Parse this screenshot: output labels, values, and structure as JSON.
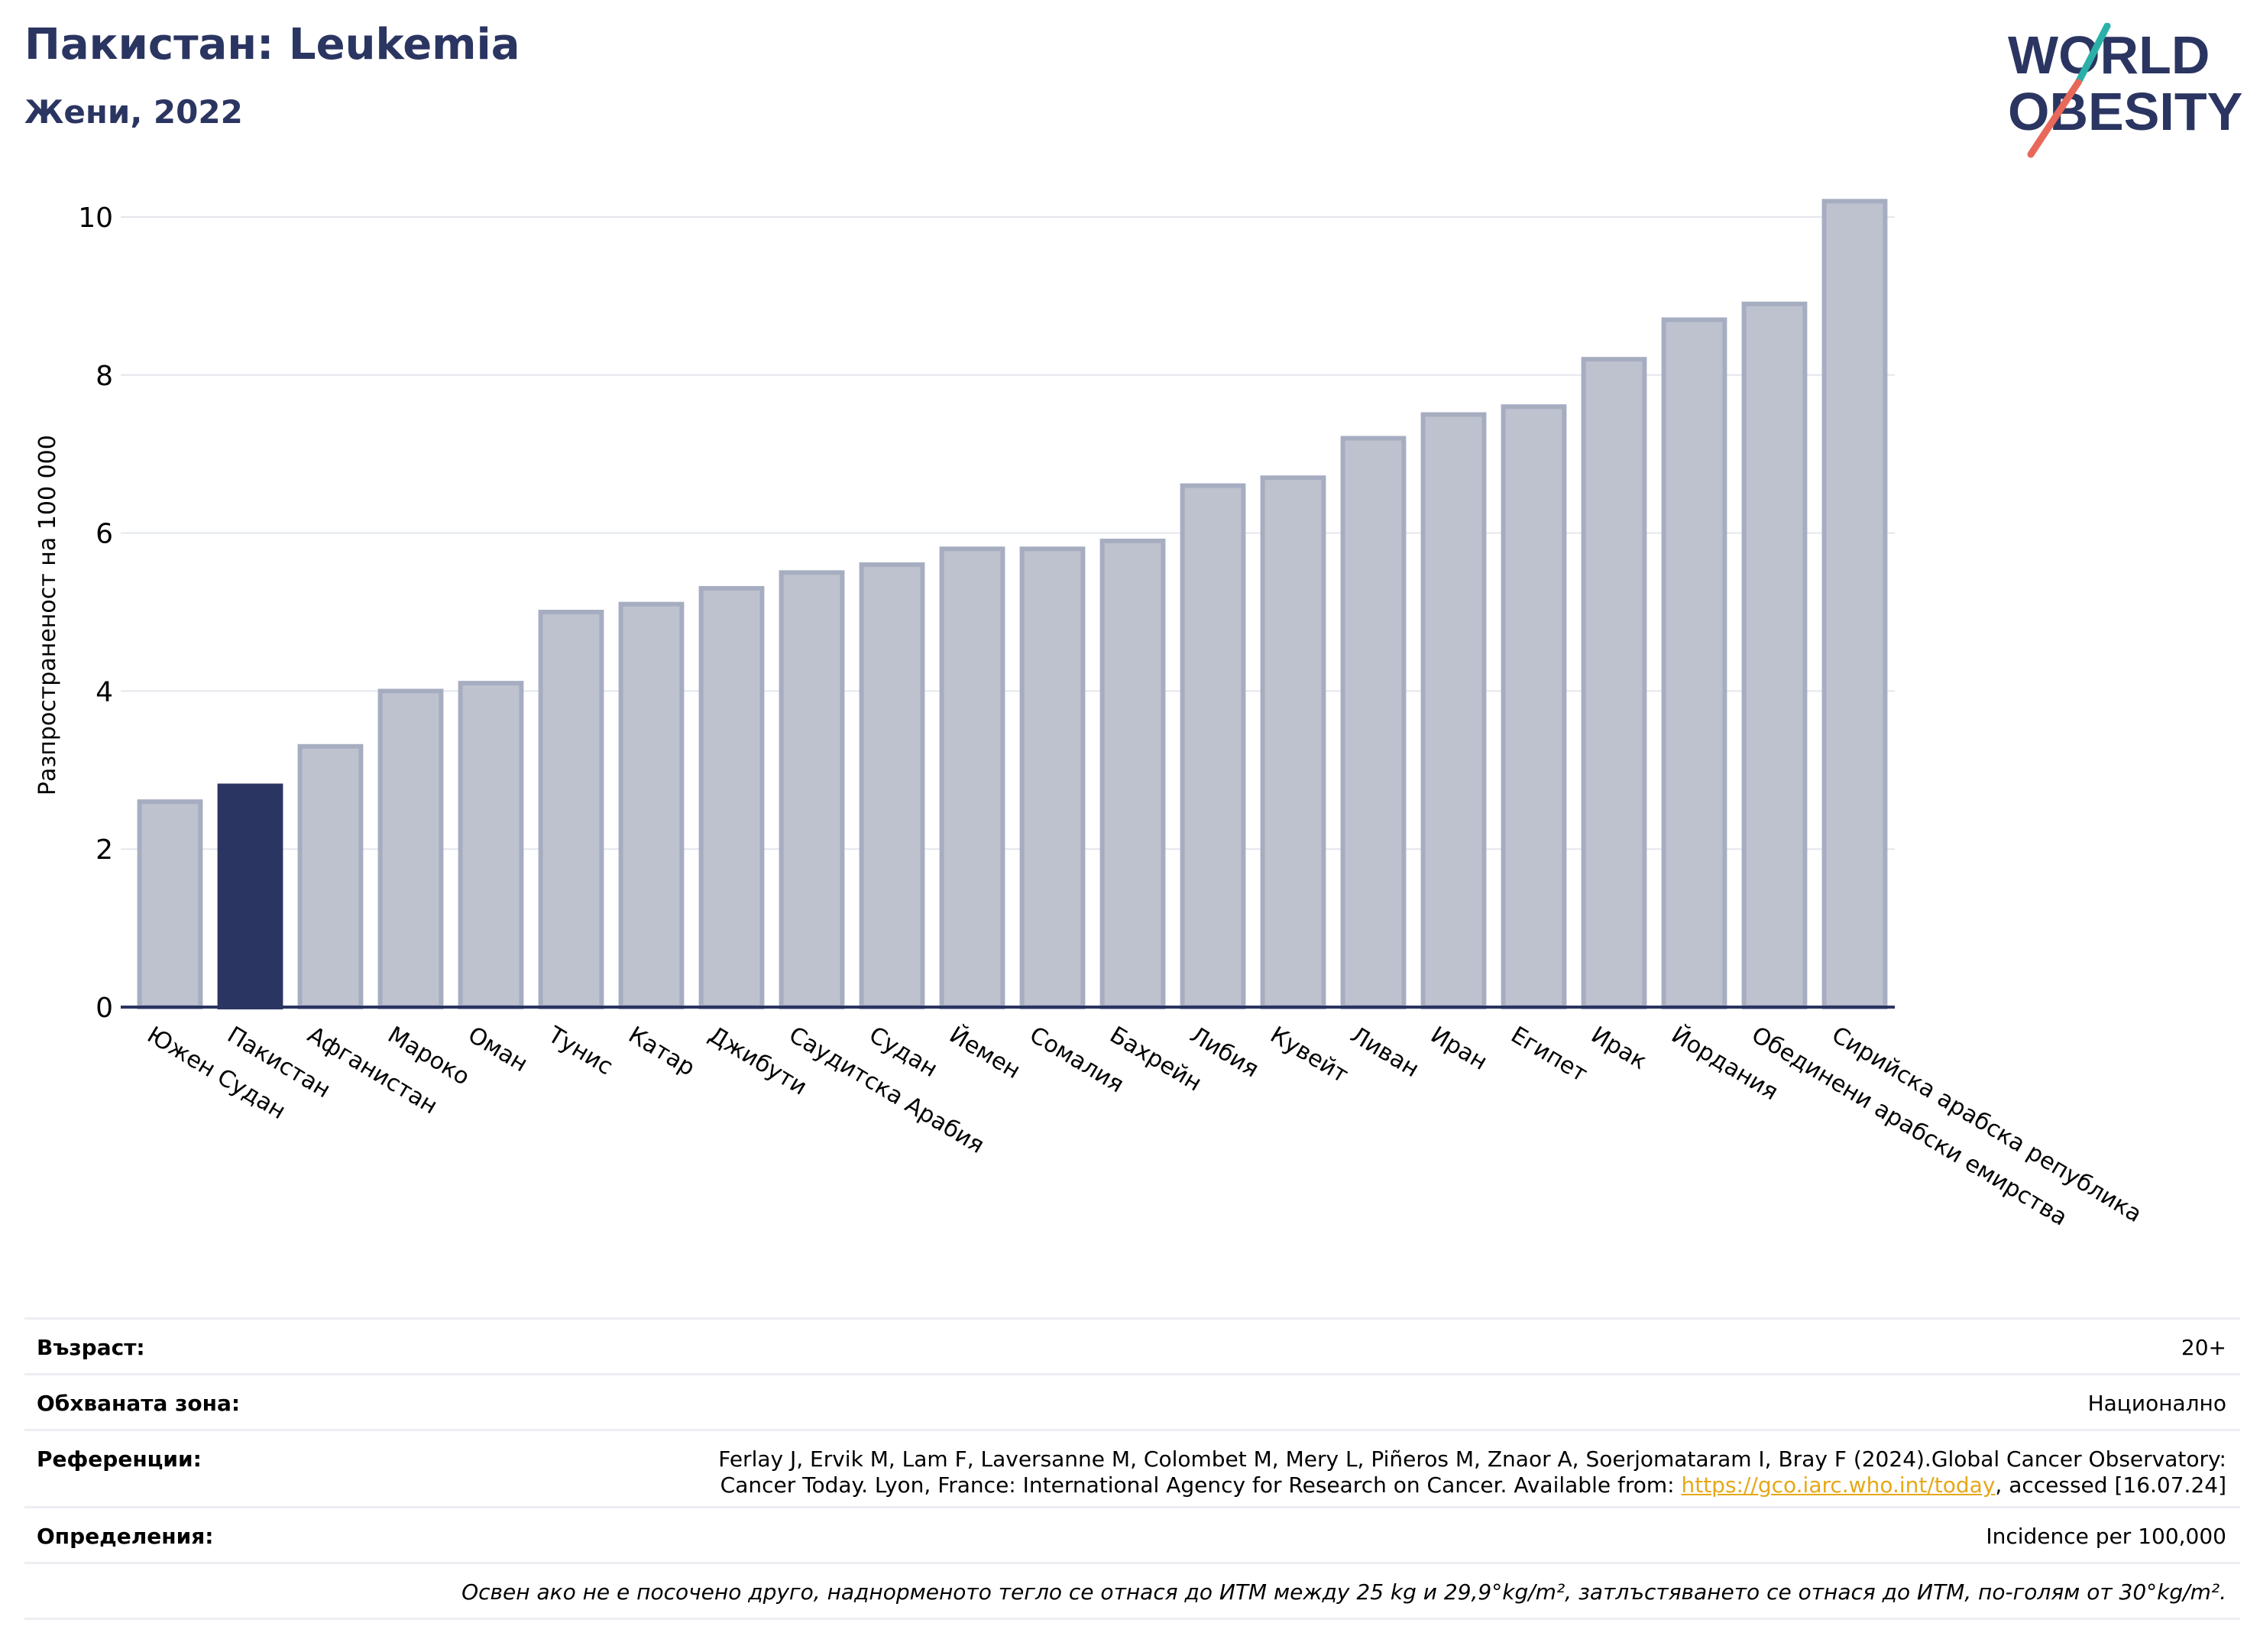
{
  "header": {
    "title": "Пакистан: Leukemia",
    "subtitle": "Жени, 2022",
    "logo_line1": "WORLD",
    "logo_line2": "OBESITY"
  },
  "colors": {
    "brand_navy": "#2b3561",
    "bar_default": "#bec2cf",
    "bar_border": "#a7adc1",
    "bar_highlight": "#2b3561",
    "logo_teal": "#2ab0a8",
    "logo_coral": "#e8685a",
    "link": "#e6a817"
  },
  "chart_data": {
    "type": "bar",
    "ylabel": "Разпространеност  на 100 000",
    "ylim": [
      0,
      10.5
    ],
    "yticks": [
      0,
      2,
      4,
      6,
      8,
      10
    ],
    "grid": true,
    "highlight_category": "Пакистан",
    "categories": [
      "Южен Судан",
      "Пакистан",
      "Афганистан",
      "Мароко",
      "Оман",
      "Тунис",
      "Катар",
      "Джибути",
      "Саудитска Арабия",
      "Судан",
      "Йемен",
      "Сомалия",
      "Бахрейн",
      "Либия",
      "Кувейт",
      "Ливан",
      "Иран",
      "Египет",
      "Ирак",
      "Йордания",
      "Обединени арабски емирства",
      "Сирийска арабска република"
    ],
    "values": [
      2.6,
      2.8,
      3.3,
      4.0,
      4.1,
      5.0,
      5.1,
      5.3,
      5.5,
      5.6,
      5.8,
      5.8,
      5.9,
      6.6,
      6.7,
      7.2,
      7.5,
      7.6,
      8.2,
      8.7,
      8.9,
      10.2
    ]
  },
  "footer": {
    "age_label": "Възраст:",
    "age_value": "20+",
    "area_label": "Обхваната зона:",
    "area_value": "Национално",
    "refs_label": "Референции:",
    "refs_line1": "Ferlay J, Ervik M, Lam F, Laversanne M, Colombet M, Mery L, Piñeros M, Znaor A, Soerjomataram I, Bray F (2024).Global Cancer Observatory:",
    "refs_line2_pre": "Cancer Today. Lyon, France: International Agency for Research on Cancer. Available from: ",
    "refs_link": "https://gco.iarc.who.int/today",
    "refs_line2_post": ", accessed [16.07.24]",
    "defs_label": "Определения:",
    "defs_value": "Incidence per 100,000",
    "note": "Освен ако не е посочено друго, наднорменото тегло се отнася до ИТМ между 25 kg и 29,9°kg/m², затлъстяването се отнася до ИТМ, по-голям от 30°kg/m²."
  }
}
